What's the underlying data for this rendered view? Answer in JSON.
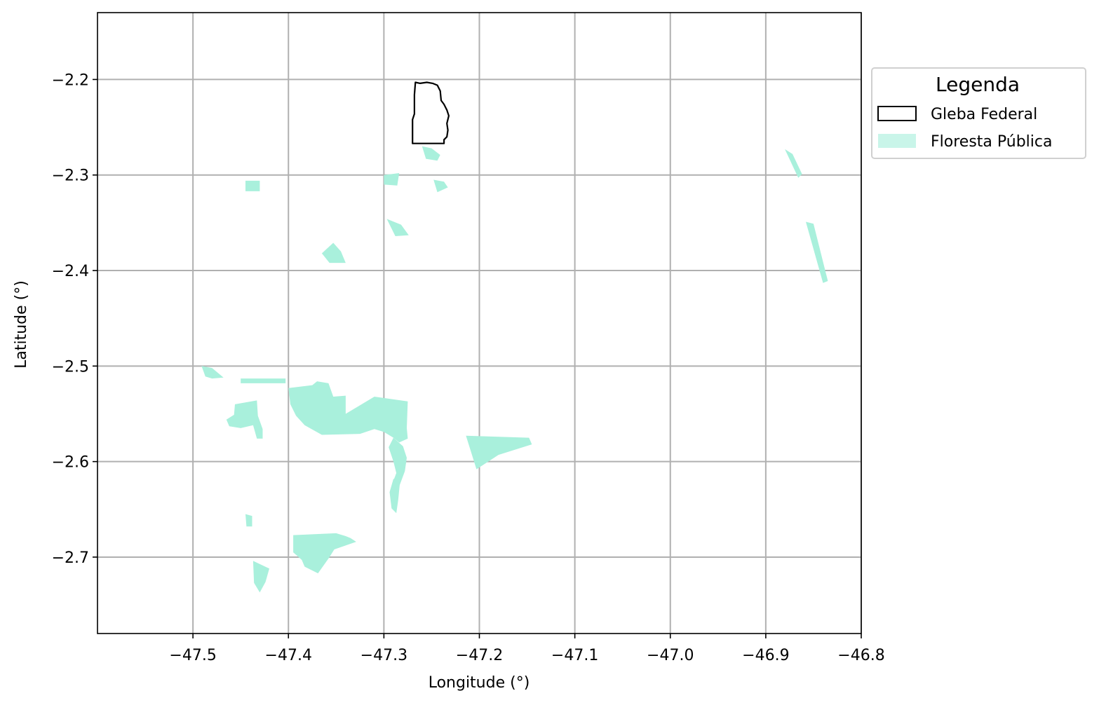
{
  "chart_data": {
    "type": "map",
    "xlabel": "Longitude (°)",
    "ylabel": "Latitude (°)",
    "xlim": [
      -47.6,
      -46.8
    ],
    "ylim": [
      -2.78,
      -2.13
    ],
    "x_ticks": [
      -47.5,
      -47.4,
      -47.3,
      -47.2,
      -47.1,
      -47.0,
      -46.9,
      -46.8
    ],
    "x_tick_labels": [
      "−47.5",
      "−47.4",
      "−47.3",
      "−47.2",
      "−47.1",
      "−47.0",
      "−46.9",
      "−46.8"
    ],
    "y_ticks": [
      -2.2,
      -2.3,
      -2.4,
      -2.5,
      -2.6,
      -2.7
    ],
    "y_tick_labels": [
      "−2.2",
      "−2.3",
      "−2.4",
      "−2.5",
      "−2.6",
      "−2.7"
    ],
    "grid": true,
    "legend": {
      "title": "Legenda",
      "placement": "outside-right-top",
      "entries": [
        {
          "label": "Gleba Federal",
          "style": "outline",
          "color": "#000000"
        },
        {
          "label": "Floresta Pública",
          "style": "fill",
          "color": "#a9f0dc"
        }
      ]
    },
    "layers": [
      {
        "name": "Gleba Federal",
        "style": "outline",
        "polygons": [
          [
            [
              -47.267,
              -2.203
            ],
            [
              -47.262,
              -2.204
            ],
            [
              -47.255,
              -2.203
            ],
            [
              -47.249,
              -2.204
            ],
            [
              -47.244,
              -2.206
            ],
            [
              -47.241,
              -2.212
            ],
            [
              -47.24,
              -2.222
            ],
            [
              -47.237,
              -2.226
            ],
            [
              -47.234,
              -2.232
            ],
            [
              -47.232,
              -2.238
            ],
            [
              -47.234,
              -2.246
            ],
            [
              -47.233,
              -2.253
            ],
            [
              -47.234,
              -2.26
            ],
            [
              -47.237,
              -2.263
            ],
            [
              -47.237,
              -2.267
            ],
            [
              -47.27,
              -2.267
            ],
            [
              -47.27,
              -2.242
            ],
            [
              -47.268,
              -2.236
            ],
            [
              -47.268,
              -2.216
            ]
          ]
        ]
      },
      {
        "name": "Floresta Pública",
        "style": "fill",
        "color": "#a9f0dc",
        "polygons": [
          [
            [
              -47.4,
              -2.523
            ],
            [
              -47.375,
              -2.52
            ],
            [
              -47.37,
              -2.516
            ],
            [
              -47.358,
              -2.518
            ],
            [
              -47.353,
              -2.532
            ],
            [
              -47.34,
              -2.531
            ],
            [
              -47.34,
              -2.55
            ],
            [
              -47.31,
              -2.532
            ],
            [
              -47.275,
              -2.537
            ],
            [
              -47.276,
              -2.565
            ],
            [
              -47.275,
              -2.576
            ],
            [
              -47.284,
              -2.58
            ],
            [
              -47.29,
              -2.575
            ],
            [
              -47.3,
              -2.569
            ],
            [
              -47.31,
              -2.566
            ],
            [
              -47.325,
              -2.571
            ],
            [
              -47.365,
              -2.572
            ],
            [
              -47.383,
              -2.562
            ],
            [
              -47.392,
              -2.552
            ],
            [
              -47.398,
              -2.54
            ]
          ],
          [
            [
              -47.29,
              -2.575
            ],
            [
              -47.295,
              -2.585
            ],
            [
              -47.29,
              -2.6
            ],
            [
              -47.287,
              -2.612
            ],
            [
              -47.29,
              -2.62
            ],
            [
              -47.284,
              -2.626
            ],
            [
              -47.278,
              -2.61
            ],
            [
              -47.276,
              -2.596
            ],
            [
              -47.28,
              -2.584
            ]
          ],
          [
            [
              -47.29,
              -2.618
            ],
            [
              -47.283,
              -2.62
            ],
            [
              -47.285,
              -2.64
            ],
            [
              -47.287,
              -2.654
            ],
            [
              -47.292,
              -2.649
            ],
            [
              -47.294,
              -2.632
            ]
          ],
          [
            [
              -47.456,
              -2.54
            ],
            [
              -47.433,
              -2.536
            ],
            [
              -47.432,
              -2.552
            ],
            [
              -47.427,
              -2.566
            ],
            [
              -47.427,
              -2.576
            ],
            [
              -47.433,
              -2.576
            ],
            [
              -47.437,
              -2.562
            ],
            [
              -47.45,
              -2.565
            ],
            [
              -47.462,
              -2.563
            ],
            [
              -47.465,
              -2.556
            ],
            [
              -47.457,
              -2.551
            ]
          ],
          [
            [
              -47.491,
              -2.5
            ],
            [
              -47.48,
              -2.502
            ],
            [
              -47.468,
              -2.512
            ],
            [
              -47.48,
              -2.513
            ],
            [
              -47.487,
              -2.511
            ]
          ],
          [
            [
              -47.45,
              -2.513
            ],
            [
              -47.403,
              -2.513
            ],
            [
              -47.403,
              -2.518
            ],
            [
              -47.45,
              -2.518
            ]
          ],
          [
            [
              -47.395,
              -2.677
            ],
            [
              -47.35,
              -2.675
            ],
            [
              -47.34,
              -2.678
            ],
            [
              -47.335,
              -2.68
            ],
            [
              -47.329,
              -2.684
            ],
            [
              -47.352,
              -2.692
            ],
            [
              -47.357,
              -2.7
            ],
            [
              -47.369,
              -2.717
            ],
            [
              -47.383,
              -2.71
            ],
            [
              -47.386,
              -2.703
            ],
            [
              -47.395,
              -2.695
            ]
          ],
          [
            [
              -47.214,
              -2.573
            ],
            [
              -47.148,
              -2.575
            ],
            [
              -47.145,
              -2.582
            ],
            [
              -47.18,
              -2.593
            ],
            [
              -47.203,
              -2.608
            ]
          ],
          [
            [
              -47.365,
              -2.382
            ],
            [
              -47.353,
              -2.371
            ],
            [
              -47.345,
              -2.38
            ],
            [
              -47.34,
              -2.392
            ],
            [
              -47.357,
              -2.392
            ]
          ],
          [
            [
              -47.3,
              -2.3
            ],
            [
              -47.284,
              -2.298
            ],
            [
              -47.286,
              -2.311
            ],
            [
              -47.3,
              -2.31
            ]
          ],
          [
            [
              -47.297,
              -2.346
            ],
            [
              -47.282,
              -2.352
            ],
            [
              -47.274,
              -2.363
            ],
            [
              -47.288,
              -2.364
            ]
          ],
          [
            [
              -47.248,
              -2.305
            ],
            [
              -47.237,
              -2.307
            ],
            [
              -47.233,
              -2.313
            ],
            [
              -47.244,
              -2.318
            ]
          ],
          [
            [
              -47.26,
              -2.27
            ],
            [
              -47.25,
              -2.272
            ],
            [
              -47.241,
              -2.279
            ],
            [
              -47.244,
              -2.285
            ],
            [
              -47.256,
              -2.283
            ]
          ],
          [
            [
              -47.445,
              -2.306
            ],
            [
              -47.43,
              -2.306
            ],
            [
              -47.43,
              -2.317
            ],
            [
              -47.445,
              -2.317
            ]
          ],
          [
            [
              -46.858,
              -2.349
            ],
            [
              -46.85,
              -2.351
            ],
            [
              -46.835,
              -2.411
            ],
            [
              -46.84,
              -2.413
            ]
          ],
          [
            [
              -46.88,
              -2.273
            ],
            [
              -46.872,
              -2.278
            ],
            [
              -46.862,
              -2.299
            ],
            [
              -46.866,
              -2.303
            ]
          ],
          [
            [
              -47.437,
              -2.704
            ],
            [
              -47.42,
              -2.712
            ],
            [
              -47.424,
              -2.726
            ],
            [
              -47.43,
              -2.737
            ],
            [
              -47.436,
              -2.727
            ]
          ],
          [
            [
              -47.445,
              -2.655
            ],
            [
              -47.438,
              -2.657
            ],
            [
              -47.438,
              -2.668
            ],
            [
              -47.444,
              -2.668
            ]
          ]
        ]
      }
    ]
  }
}
